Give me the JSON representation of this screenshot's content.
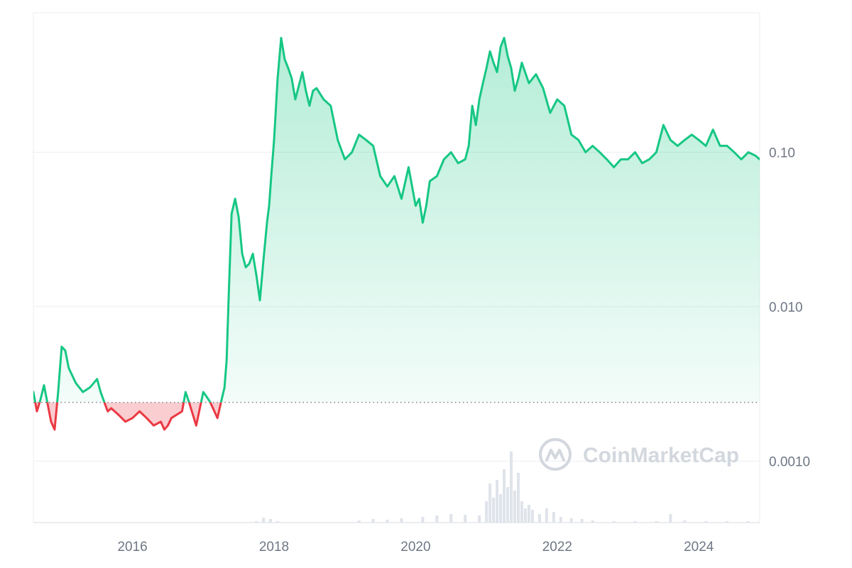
{
  "chart_data": {
    "type": "area",
    "y_scale": "log",
    "ylim": [
      0.0004,
      0.8
    ],
    "xlim": [
      2014.6,
      2024.86
    ],
    "baseline_value": 0.0024,
    "y_ticks": [
      {
        "value": 0.1,
        "label": "0.10"
      },
      {
        "value": 0.01,
        "label": "0.010"
      },
      {
        "value": 0.001,
        "label": "0.0010"
      }
    ],
    "x_ticks": [
      {
        "value": 2016,
        "label": "2016"
      },
      {
        "value": 2018,
        "label": "2018"
      },
      {
        "value": 2020,
        "label": "2020"
      },
      {
        "value": 2022,
        "label": "2022"
      },
      {
        "value": 2024,
        "label": "2024"
      }
    ],
    "grid": true,
    "colors": {
      "up_line": "#16c784",
      "down_line": "#ea3943",
      "up_fill": "#16c784",
      "down_fill": "#ea3943",
      "grid": "#eceef2",
      "baseline": "#7d838f",
      "volume": "#dfe3ea"
    },
    "series": [
      {
        "x": [
          2014.6,
          2014.65,
          2014.7,
          2014.75,
          2014.85,
          2014.9,
          2014.95,
          2015.0,
          2015.05,
          2015.1,
          2015.2,
          2015.3,
          2015.4,
          2015.5,
          2015.55,
          2015.65,
          2015.7,
          2015.8,
          2015.9,
          2016.0,
          2016.1,
          2016.2,
          2016.3,
          2016.4,
          2016.45,
          2016.5,
          2016.55,
          2016.7,
          2016.75,
          2016.8,
          2016.9,
          2017.0,
          2017.05,
          2017.1,
          2017.2,
          2017.25,
          2017.3,
          2017.33,
          2017.36,
          2017.4,
          2017.45,
          2017.5,
          2017.55,
          2017.6,
          2017.65,
          2017.7,
          2017.75,
          2017.8,
          2017.85,
          2017.9,
          2017.93,
          2017.96,
          2018.0,
          2018.05,
          2018.1,
          2018.15,
          2018.2,
          2018.25,
          2018.3,
          2018.4,
          2018.45,
          2018.5,
          2018.55,
          2018.6,
          2018.7,
          2018.8,
          2018.9,
          2019.0,
          2019.1,
          2019.2,
          2019.3,
          2019.4,
          2019.5,
          2019.6,
          2019.7,
          2019.8,
          2019.9,
          2020.0,
          2020.05,
          2020.1,
          2020.15,
          2020.2,
          2020.3,
          2020.4,
          2020.5,
          2020.6,
          2020.7,
          2020.75,
          2020.8,
          2020.85,
          2020.9,
          2020.95,
          2021.0,
          2021.05,
          2021.1,
          2021.15,
          2021.2,
          2021.25,
          2021.3,
          2021.35,
          2021.4,
          2021.45,
          2021.5,
          2021.6,
          2021.7,
          2021.8,
          2021.9,
          2022.0,
          2022.1,
          2022.2,
          2022.3,
          2022.4,
          2022.5,
          2022.6,
          2022.7,
          2022.8,
          2022.9,
          2023.0,
          2023.1,
          2023.2,
          2023.3,
          2023.4,
          2023.5,
          2023.6,
          2023.7,
          2023.8,
          2023.9,
          2024.0,
          2024.1,
          2024.2,
          2024.3,
          2024.4,
          2024.5,
          2024.6,
          2024.7,
          2024.8,
          2024.86
        ],
        "values": [
          0.0028,
          0.0021,
          0.0025,
          0.0031,
          0.0018,
          0.0016,
          0.0028,
          0.0055,
          0.0052,
          0.004,
          0.0032,
          0.0028,
          0.003,
          0.0034,
          0.0028,
          0.0021,
          0.0022,
          0.002,
          0.0018,
          0.0019,
          0.0021,
          0.0019,
          0.0017,
          0.0018,
          0.0016,
          0.0017,
          0.0019,
          0.0021,
          0.0028,
          0.0024,
          0.0017,
          0.0028,
          0.0026,
          0.0024,
          0.0019,
          0.0024,
          0.003,
          0.0045,
          0.012,
          0.04,
          0.05,
          0.038,
          0.022,
          0.018,
          0.019,
          0.022,
          0.016,
          0.011,
          0.02,
          0.035,
          0.045,
          0.07,
          0.12,
          0.3,
          0.55,
          0.4,
          0.35,
          0.3,
          0.22,
          0.33,
          0.25,
          0.2,
          0.25,
          0.26,
          0.22,
          0.2,
          0.12,
          0.09,
          0.1,
          0.13,
          0.12,
          0.11,
          0.07,
          0.06,
          0.07,
          0.05,
          0.08,
          0.045,
          0.05,
          0.035,
          0.045,
          0.065,
          0.07,
          0.09,
          0.1,
          0.085,
          0.09,
          0.11,
          0.2,
          0.15,
          0.22,
          0.28,
          0.35,
          0.45,
          0.38,
          0.33,
          0.48,
          0.55,
          0.42,
          0.35,
          0.25,
          0.3,
          0.38,
          0.28,
          0.32,
          0.26,
          0.18,
          0.22,
          0.2,
          0.13,
          0.12,
          0.1,
          0.11,
          0.1,
          0.09,
          0.08,
          0.09,
          0.09,
          0.1,
          0.085,
          0.09,
          0.1,
          0.15,
          0.12,
          0.11,
          0.12,
          0.13,
          0.12,
          0.11,
          0.14,
          0.11,
          0.11,
          0.1,
          0.09,
          0.1,
          0.095,
          0.09
        ]
      }
    ],
    "volume": {
      "x": [
        2017.75,
        2017.85,
        2017.95,
        2018.05,
        2019.2,
        2019.4,
        2019.6,
        2019.8,
        2020.1,
        2020.3,
        2020.5,
        2020.7,
        2020.9,
        2021.0,
        2021.05,
        2021.1,
        2021.15,
        2021.2,
        2021.25,
        2021.3,
        2021.35,
        2021.4,
        2021.45,
        2021.5,
        2021.55,
        2021.6,
        2021.65,
        2021.75,
        2021.85,
        2021.95,
        2022.05,
        2022.2,
        2022.35,
        2022.5,
        2022.8,
        2023.1,
        2023.4,
        2023.6,
        2023.8,
        2024.1,
        2024.4,
        2024.7
      ],
      "values": [
        0.02,
        0.07,
        0.05,
        0.02,
        0.03,
        0.05,
        0.04,
        0.06,
        0.08,
        0.1,
        0.12,
        0.11,
        0.1,
        0.3,
        0.55,
        0.35,
        0.6,
        0.4,
        0.75,
        0.5,
        1.0,
        0.45,
        0.7,
        0.3,
        0.2,
        0.25,
        0.18,
        0.12,
        0.2,
        0.15,
        0.08,
        0.06,
        0.05,
        0.03,
        0.02,
        0.02,
        0.02,
        0.12,
        0.03,
        0.02,
        0.02,
        0.02
      ]
    }
  },
  "watermark": {
    "text": "CoinMarketCap",
    "icon": "coinmarketcap-logo"
  }
}
